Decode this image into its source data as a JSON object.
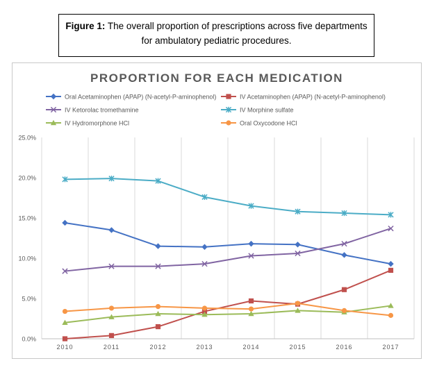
{
  "caption": {
    "label": "Figure 1:",
    "line1": " The overall proportion of prescriptions across five departments",
    "line2": "for ambulatory pediatric procedures."
  },
  "chart_data": {
    "type": "line",
    "title": "PROPORTION FOR EACH MEDICATION",
    "xlabel": "",
    "ylabel": "",
    "categories": [
      "2010",
      "2011",
      "2012",
      "2013",
      "2014",
      "2015",
      "2016",
      "2017"
    ],
    "y_ticks": [
      "0.0%",
      "5.0%",
      "10.0%",
      "15.0%",
      "20.0%",
      "25.0%"
    ],
    "ylim": [
      0,
      25
    ],
    "grid": "vertical",
    "legend_position": "top",
    "series": [
      {
        "name": "Oral Acetaminophen (APAP) (N-acetyl-P-aminophenol)",
        "color": "#4472c4",
        "marker": "diamond",
        "values": [
          14.4,
          13.5,
          11.5,
          11.4,
          11.8,
          11.7,
          10.4,
          9.3
        ]
      },
      {
        "name": "IV Acetaminophen (APAP) (N-acetyl-P-aminophenol)",
        "color": "#c0504d",
        "marker": "square",
        "values": [
          0.0,
          0.4,
          1.5,
          3.4,
          4.7,
          4.3,
          6.1,
          8.5
        ]
      },
      {
        "name": "IV Ketorolac tromethamine",
        "color": "#8064a2",
        "marker": "x",
        "values": [
          8.4,
          9.0,
          9.0,
          9.3,
          10.3,
          10.6,
          11.8,
          13.7
        ]
      },
      {
        "name": "IV Morphine sulfate",
        "color": "#4bacc6",
        "marker": "star",
        "values": [
          19.8,
          19.9,
          19.6,
          17.6,
          16.5,
          15.8,
          15.6,
          15.4
        ]
      },
      {
        "name": "IV Hydromorphone HCl",
        "color": "#9bbb59",
        "marker": "triangle",
        "values": [
          2.0,
          2.7,
          3.1,
          3.0,
          3.1,
          3.5,
          3.3,
          4.1
        ]
      },
      {
        "name": "Oral Oxycodone HCl",
        "color": "#f79646",
        "marker": "circle",
        "values": [
          3.4,
          3.8,
          4.0,
          3.8,
          3.7,
          4.4,
          3.5,
          2.9
        ]
      }
    ]
  }
}
